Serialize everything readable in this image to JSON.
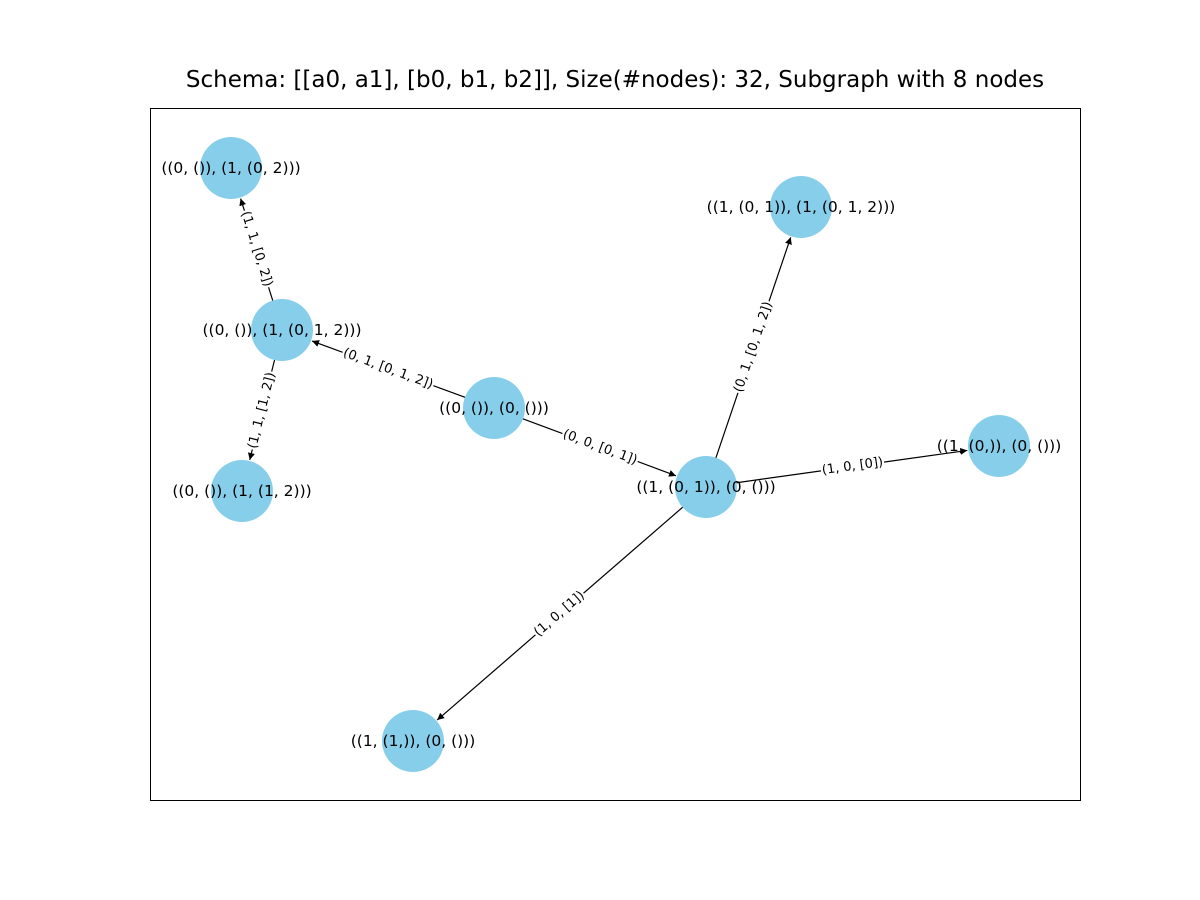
{
  "title": "Schema: [[a0, a1], [b0, b1, b2]], Size(#nodes): 32, Subgraph with 8 nodes",
  "colors": {
    "node": "#87ceeb",
    "edge": "#000000",
    "background": "#ffffff"
  },
  "graph": {
    "directed": true,
    "nodes": [
      {
        "id": "n0",
        "label": "((0, ()), (0, ()))"
      },
      {
        "id": "n1",
        "label": "((0, ()), (1, (0, 1, 2)))"
      },
      {
        "id": "n2",
        "label": "((0, ()), (1, (0, 2)))"
      },
      {
        "id": "n3",
        "label": "((0, ()), (1, (1, 2)))"
      },
      {
        "id": "n4",
        "label": "((1, (0, 1)), (0, ()))"
      },
      {
        "id": "n5",
        "label": "((1, (0, 1)), (1, (0, 1, 2)))"
      },
      {
        "id": "n6",
        "label": "((1, (0,)), (0, ()))"
      },
      {
        "id": "n7",
        "label": "((1, (1,)), (0, ()))"
      }
    ],
    "edges": [
      {
        "source": "n0",
        "target": "n1",
        "label": "(0, 1, [0, 1, 2])"
      },
      {
        "source": "n0",
        "target": "n4",
        "label": "(0, 0, [0, 1])"
      },
      {
        "source": "n1",
        "target": "n2",
        "label": "(1, 1, [0, 2])"
      },
      {
        "source": "n1",
        "target": "n3",
        "label": "(1, 1, [1, 2])"
      },
      {
        "source": "n4",
        "target": "n5",
        "label": "(0, 1, [0, 1, 2])"
      },
      {
        "source": "n4",
        "target": "n6",
        "label": "(1, 0, [0])"
      },
      {
        "source": "n4",
        "target": "n7",
        "label": "(1, 0, [1])"
      }
    ]
  }
}
